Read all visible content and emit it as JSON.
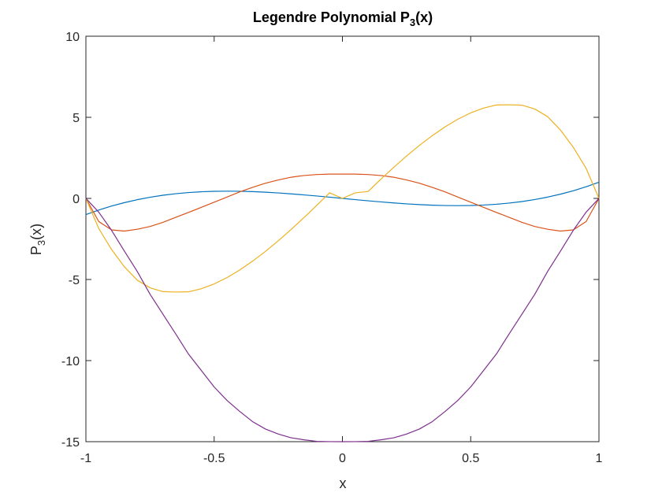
{
  "chart_data": {
    "type": "line",
    "title_main": "Legendre Polynomial P",
    "title_sub": "3",
    "title_tail": "(x)",
    "xlabel": "x",
    "ylabel_main": "P",
    "ylabel_sub": "3",
    "ylabel_tail": "(x)",
    "xlim": [
      -1,
      1
    ],
    "ylim": [
      -15,
      10
    ],
    "xticks": [
      -1,
      -0.5,
      0,
      0.5,
      1
    ],
    "xtick_labels": [
      "-1",
      "-0.5",
      "0",
      "0.5",
      "1"
    ],
    "yticks": [
      -15,
      -10,
      -5,
      0,
      5,
      10
    ],
    "ytick_labels": [
      "-15",
      "-10",
      "-5",
      "0",
      "5",
      "10"
    ],
    "grid": false,
    "colors": {
      "axis": "#262626",
      "background": "#ffffff"
    },
    "x": [
      -1,
      -0.95,
      -0.9,
      -0.85,
      -0.8,
      -0.75,
      -0.7,
      -0.65,
      -0.6,
      -0.55,
      -0.5,
      -0.45,
      -0.4,
      -0.35,
      -0.3,
      -0.25,
      -0.2,
      -0.15,
      -0.1,
      -0.05,
      0,
      0.05,
      0.1,
      0.15,
      0.2,
      0.25,
      0.3,
      0.35,
      0.4,
      0.45,
      0.5,
      0.55,
      0.6,
      0.65,
      0.7,
      0.75,
      0.8,
      0.85,
      0.9,
      0.95,
      1
    ],
    "series": [
      {
        "color": "#0072BD",
        "values": [
          -1.0,
          -0.7184,
          -0.4725,
          -0.2603,
          -0.08,
          0.0703,
          0.1925,
          0.2884,
          0.36,
          0.4091,
          0.4375,
          0.4472,
          0.44,
          0.4178,
          0.3825,
          0.3359,
          0.28,
          0.2166,
          0.1475,
          0.0747,
          0,
          -0.0747,
          -0.1475,
          -0.2166,
          -0.28,
          -0.3359,
          -0.3825,
          -0.4178,
          -0.44,
          -0.4472,
          -0.4375,
          -0.4091,
          -0.36,
          -0.2884,
          -0.1925,
          -0.0703,
          0.08,
          0.2603,
          0.4725,
          0.7184,
          1.0
        ]
      },
      {
        "color": "#D95319",
        "values": [
          0,
          -1.4252,
          -1.9406,
          -2.0134,
          -1.9008,
          -1.7309,
          -1.4789,
          -1.1659,
          -0.864,
          -0.5514,
          -0.2344,
          0.0802,
          0.4032,
          0.684,
          0.9378,
          1.1367,
          1.3056,
          1.4115,
          1.4702,
          1.4994,
          1.5,
          1.4994,
          1.4702,
          1.4115,
          1.3056,
          1.1367,
          0.9378,
          0.684,
          0.4032,
          0.0802,
          -0.2344,
          -0.5514,
          -0.864,
          -1.1659,
          -1.4789,
          -1.7309,
          -1.9008,
          -2.0134,
          -1.9406,
          -1.4252,
          0
        ]
      },
      {
        "color": "#EDB120",
        "values": [
          0,
          -1.8525,
          -3.1493,
          -4.2161,
          -5.04,
          -5.5125,
          -5.7477,
          -5.7733,
          -5.76,
          -5.5688,
          -5.2734,
          -4.8841,
          -4.41,
          -3.8682,
          -3.2685,
          -2.6133,
          -1.9152,
          -1.1834,
          -0.4275,
          0.344,
          0,
          0.344,
          0.4275,
          1.1834,
          1.9152,
          2.6133,
          3.2685,
          3.8682,
          4.41,
          4.8841,
          5.2734,
          5.5688,
          5.76,
          5.7733,
          5.7477,
          5.5125,
          5.04,
          4.2161,
          3.1493,
          1.8525,
          0
        ]
      },
      {
        "color": "#7E2F8E",
        "values": [
          0,
          -0.8475,
          -1.9665,
          -3.2512,
          -4.5,
          -5.9063,
          -7.1325,
          -8.3513,
          -9.6,
          -10.6125,
          -11.625,
          -12.4538,
          -13.14,
          -13.7663,
          -14.22,
          -14.5313,
          -14.76,
          -14.8838,
          -14.9775,
          -14.9962,
          -15.0,
          -14.9962,
          -14.9775,
          -14.8838,
          -14.76,
          -14.5313,
          -14.22,
          -13.7663,
          -13.14,
          -12.4538,
          -11.625,
          -10.6125,
          -9.6,
          -8.3513,
          -7.1325,
          -5.9063,
          -4.5,
          -3.2512,
          -1.9665,
          -0.8475,
          0
        ]
      }
    ]
  }
}
